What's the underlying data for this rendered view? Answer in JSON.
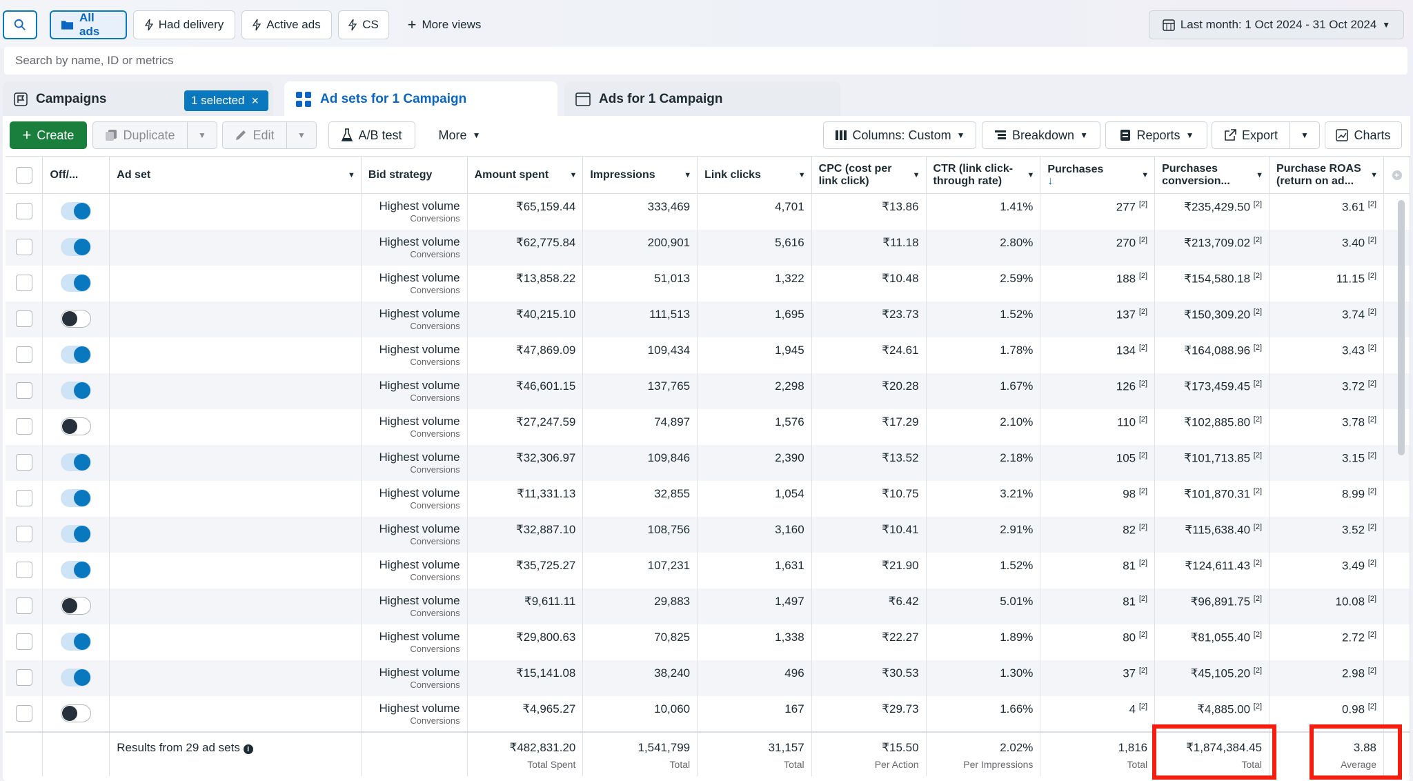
{
  "top": {
    "views": [
      "All ads",
      "Had delivery",
      "Active ads",
      "CS"
    ],
    "more_views": "More views",
    "date_range": "Last month: 1 Oct 2024 - 31 Oct 2024"
  },
  "search": {
    "placeholder": "Search by name, ID or metrics"
  },
  "tabs": {
    "campaigns": "Campaigns",
    "selected_badge": "1 selected",
    "adsets": "Ad sets for 1 Campaign",
    "ads": "Ads for 1 Campaign"
  },
  "toolbar": {
    "create": "Create",
    "duplicate": "Duplicate",
    "edit": "Edit",
    "ab_test": "A/B test",
    "more": "More",
    "columns": "Columns: Custom",
    "breakdown": "Breakdown",
    "reports": "Reports",
    "export": "Export",
    "charts": "Charts"
  },
  "columns": [
    "Off/...",
    "Ad set",
    "Bid strategy",
    "Amount spent",
    "Impressions",
    "Link clicks",
    "CPC (cost per link click)",
    "CTR (link click-through rate)",
    "Purchases",
    "Purchases conversion...",
    "Purchase ROAS (return on ad..."
  ],
  "bid_strategy": {
    "line1": "Highest volume",
    "line2": "Conversions"
  },
  "footnote": "[2]",
  "rows": [
    {
      "on": true,
      "spent": "₹65,159.44",
      "impr": "333,469",
      "clicks": "4,701",
      "cpc": "₹13.86",
      "ctr": "1.41%",
      "purch": "277",
      "conv": "₹235,429.50",
      "roas": "3.61"
    },
    {
      "on": true,
      "spent": "₹62,775.84",
      "impr": "200,901",
      "clicks": "5,616",
      "cpc": "₹11.18",
      "ctr": "2.80%",
      "purch": "270",
      "conv": "₹213,709.02",
      "roas": "3.40"
    },
    {
      "on": true,
      "spent": "₹13,858.22",
      "impr": "51,013",
      "clicks": "1,322",
      "cpc": "₹10.48",
      "ctr": "2.59%",
      "purch": "188",
      "conv": "₹154,580.18",
      "roas": "11.15"
    },
    {
      "on": false,
      "spent": "₹40,215.10",
      "impr": "111,513",
      "clicks": "1,695",
      "cpc": "₹23.73",
      "ctr": "1.52%",
      "purch": "137",
      "conv": "₹150,309.20",
      "roas": "3.74"
    },
    {
      "on": true,
      "spent": "₹47,869.09",
      "impr": "109,434",
      "clicks": "1,945",
      "cpc": "₹24.61",
      "ctr": "1.78%",
      "purch": "134",
      "conv": "₹164,088.96",
      "roas": "3.43"
    },
    {
      "on": true,
      "spent": "₹46,601.15",
      "impr": "137,765",
      "clicks": "2,298",
      "cpc": "₹20.28",
      "ctr": "1.67%",
      "purch": "126",
      "conv": "₹173,459.45",
      "roas": "3.72"
    },
    {
      "on": false,
      "spent": "₹27,247.59",
      "impr": "74,897",
      "clicks": "1,576",
      "cpc": "₹17.29",
      "ctr": "2.10%",
      "purch": "110",
      "conv": "₹102,885.80",
      "roas": "3.78"
    },
    {
      "on": true,
      "spent": "₹32,306.97",
      "impr": "109,846",
      "clicks": "2,390",
      "cpc": "₹13.52",
      "ctr": "2.18%",
      "purch": "105",
      "conv": "₹101,713.85",
      "roas": "3.15"
    },
    {
      "on": true,
      "spent": "₹11,331.13",
      "impr": "32,855",
      "clicks": "1,054",
      "cpc": "₹10.75",
      "ctr": "3.21%",
      "purch": "98",
      "conv": "₹101,870.31",
      "roas": "8.99"
    },
    {
      "on": true,
      "spent": "₹32,887.10",
      "impr": "108,756",
      "clicks": "3,160",
      "cpc": "₹10.41",
      "ctr": "2.91%",
      "purch": "82",
      "conv": "₹115,638.40",
      "roas": "3.52"
    },
    {
      "on": true,
      "spent": "₹35,725.27",
      "impr": "107,231",
      "clicks": "1,631",
      "cpc": "₹21.90",
      "ctr": "1.52%",
      "purch": "81",
      "conv": "₹124,611.43",
      "roas": "3.49"
    },
    {
      "on": false,
      "spent": "₹9,611.11",
      "impr": "29,883",
      "clicks": "1,497",
      "cpc": "₹6.42",
      "ctr": "5.01%",
      "purch": "81",
      "conv": "₹96,891.75",
      "roas": "10.08"
    },
    {
      "on": true,
      "spent": "₹29,800.63",
      "impr": "70,825",
      "clicks": "1,338",
      "cpc": "₹22.27",
      "ctr": "1.89%",
      "purch": "80",
      "conv": "₹81,055.40",
      "roas": "2.72"
    },
    {
      "on": true,
      "spent": "₹15,141.08",
      "impr": "38,240",
      "clicks": "496",
      "cpc": "₹30.53",
      "ctr": "1.30%",
      "purch": "37",
      "conv": "₹45,105.20",
      "roas": "2.98"
    },
    {
      "on": false,
      "spent": "₹4,965.27",
      "impr": "10,060",
      "clicks": "167",
      "cpc": "₹29.73",
      "ctr": "1.66%",
      "purch": "4",
      "conv": "₹4,885.00",
      "roas": "0.98"
    }
  ],
  "summary": {
    "label": "Results from 29 ad sets",
    "spent": "₹482,831.20",
    "spent_sub": "Total Spent",
    "impr": "1,541,799",
    "impr_sub": "Total",
    "clicks": "31,157",
    "clicks_sub": "Total",
    "cpc": "₹15.50",
    "cpc_sub": "Per Action",
    "ctr": "2.02%",
    "ctr_sub": "Per Impressions",
    "purch": "1,816",
    "purch_sub": "Total",
    "conv": "₹1,874,384.45",
    "conv_sub": "Total",
    "roas": "3.88",
    "roas_sub": "Average"
  },
  "colors": {
    "accent": "#0a78be",
    "create": "#1a7f3c",
    "highlight": "#f41e10"
  }
}
